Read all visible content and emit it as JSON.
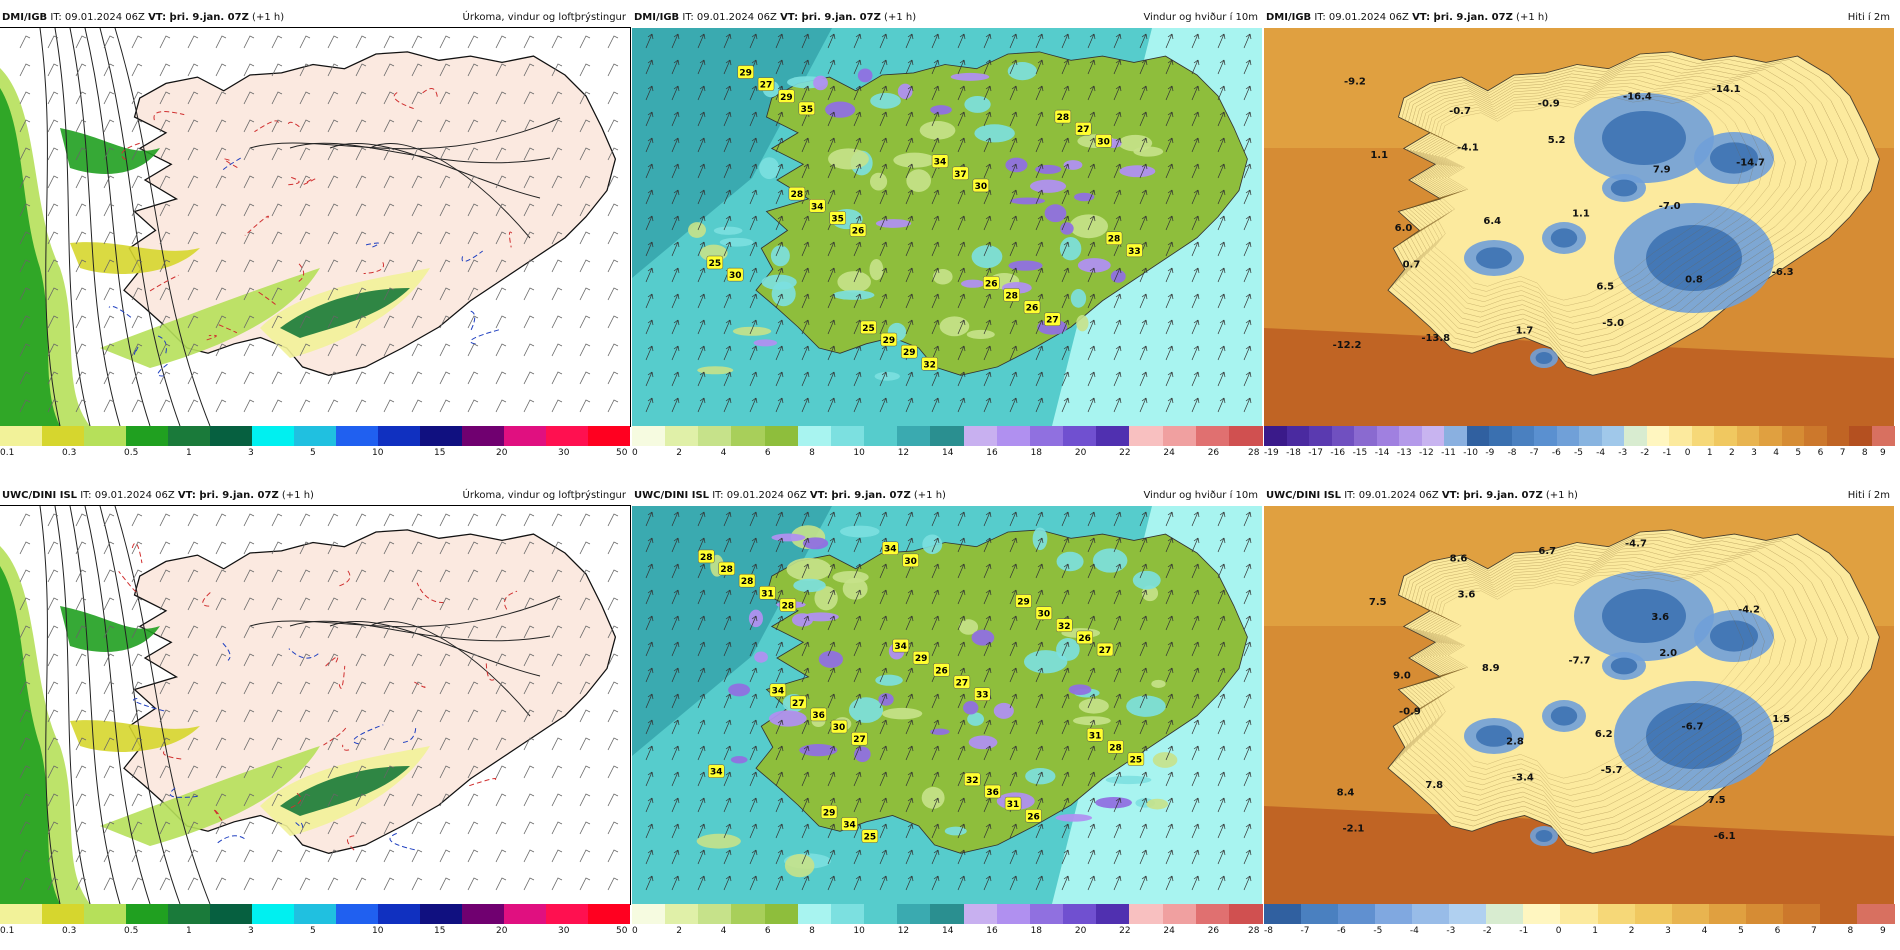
{
  "common": {
    "it_label": "IT:",
    "it_value": "09.01.2024 06Z",
    "vt_label": "VT: þri. 9.jan. 07Z",
    "lead": "(+1 h)"
  },
  "panels": [
    {
      "id": "dmi-precip",
      "source": "DMI/IGB",
      "title": "Úrkoma, vindur og loftþrýstingur",
      "type": "precip",
      "colorbar": {
        "colors": [
          "#f2f299",
          "#d6d62e",
          "#b6e05a",
          "#20a020",
          "#1a7a3a",
          "#066040",
          "#00f0f0",
          "#20c0e0",
          "#2060f0",
          "#1030c0",
          "#101080",
          "#700070",
          "#e01080",
          "#ff1050",
          "#ff0020"
        ],
        "ticks": [
          "0.1",
          "0.3",
          "0.5",
          "1",
          "3",
          "5",
          "10",
          "15",
          "20",
          "30",
          "50"
        ]
      },
      "labels": []
    },
    {
      "id": "dmi-wind",
      "source": "DMI/IGB",
      "title": "Vindur og hviður í 10m",
      "type": "wind",
      "colorbar": {
        "colors": [
          "#f6fbe0",
          "#e0f0a8",
          "#c6e28a",
          "#a8cf5a",
          "#8ebe3c",
          "#a8f4f0",
          "#7ce0e0",
          "#56cccc",
          "#3aaab0",
          "#2a8f90",
          "#c8b0f0",
          "#b090f0",
          "#9070e0",
          "#7050d0",
          "#5030b0",
          "#f8c0c0",
          "#f0a0a0",
          "#e07070",
          "#d05050"
        ],
        "ticks": [
          "0",
          "2",
          "4",
          "6",
          "8",
          "10",
          "12",
          "14",
          "16",
          "18",
          "20",
          "22",
          "24",
          "26",
          "28"
        ]
      },
      "labels": [
        "35",
        "32",
        "27",
        "30",
        "26",
        "30",
        "30",
        "29",
        "29",
        "26",
        "25",
        "35",
        "37",
        "27",
        "27",
        "29",
        "28",
        "33",
        "34",
        "34",
        "28",
        "29",
        "25",
        "26",
        "28",
        "28"
      ]
    },
    {
      "id": "dmi-temp",
      "source": "DMI/IGB",
      "title": "Hiti í 2m",
      "type": "temp",
      "colorbar": {
        "colors": [
          "#3a1a8a",
          "#4a2aa0",
          "#5a3ab0",
          "#7050c0",
          "#8a6ad0",
          "#a080e0",
          "#b49aea",
          "#c8b4f0",
          "#8ab0e0",
          "#3060a0",
          "#3a70b0",
          "#4a80c0",
          "#5a90d0",
          "#70a0d8",
          "#88b4e0",
          "#a0c8ea",
          "#d8ecd0",
          "#fff6c0",
          "#fcea9e",
          "#f6d878",
          "#f0c860",
          "#e8b450",
          "#e0a040",
          "#d68c34",
          "#cc782c",
          "#c06424",
          "#b45020",
          "#d87060"
        ],
        "ticks": [
          "-19",
          "-18",
          "-17",
          "-16",
          "-15",
          "-14",
          "-13",
          "-12",
          "-11",
          "-10",
          "-9",
          "-8",
          "-7",
          "-6",
          "-5",
          "-4",
          "-3",
          "-2",
          "-1",
          "0",
          "1",
          "2",
          "3",
          "4",
          "5",
          "6",
          "7",
          "8",
          "9"
        ]
      },
      "labels": [
        "-0.7",
        "7.9",
        "6.0",
        "6.5",
        "-12.2",
        "-0.9",
        "-14.7",
        "6.4",
        "0.8",
        "-13.8",
        "-16.4",
        "1.1",
        "1.1",
        "-6.3",
        "1.7",
        "-14.1",
        "-4.1",
        "-7.0",
        "0.7",
        "-5.0",
        "-9.2",
        "5.2"
      ]
    },
    {
      "id": "uwc-precip",
      "source": "UWC/DINI ISL",
      "title": "Úrkoma, vindur og loftþrýstingur",
      "type": "precip",
      "colorbar": {
        "colors": [
          "#f2f299",
          "#d6d62e",
          "#b6e05a",
          "#20a020",
          "#1a7a3a",
          "#066040",
          "#00f0f0",
          "#20c0e0",
          "#2060f0",
          "#1030c0",
          "#101080",
          "#700070",
          "#e01080",
          "#ff1050",
          "#ff0020"
        ],
        "ticks": [
          "0.1",
          "0.3",
          "0.5",
          "1",
          "3",
          "5",
          "10",
          "15",
          "20",
          "30",
          "50"
        ]
      },
      "labels": []
    },
    {
      "id": "uwc-wind",
      "source": "UWC/DINI ISL",
      "title": "Vindur og hviður í 10m",
      "type": "wind",
      "colorbar": {
        "colors": [
          "#f6fbe0",
          "#e0f0a8",
          "#c6e28a",
          "#a8cf5a",
          "#8ebe3c",
          "#a8f4f0",
          "#7ce0e0",
          "#56cccc",
          "#3aaab0",
          "#2a8f90",
          "#c8b0f0",
          "#b090f0",
          "#9070e0",
          "#7050d0",
          "#5030b0",
          "#f8c0c0",
          "#f0a0a0",
          "#e07070",
          "#d05050"
        ],
        "ticks": [
          "0",
          "2",
          "4",
          "6",
          "8",
          "10",
          "12",
          "14",
          "16",
          "18",
          "20",
          "22",
          "24",
          "26",
          "28"
        ]
      },
      "labels": [
        "27",
        "33",
        "27",
        "28",
        "30",
        "26",
        "34",
        "30",
        "27",
        "26",
        "31",
        "34",
        "31",
        "25",
        "36",
        "26",
        "32",
        "28",
        "25",
        "36",
        "28",
        "27",
        "29",
        "30",
        "28",
        "34",
        "32",
        "31",
        "34",
        "34",
        "29",
        "28",
        "29"
      ]
    },
    {
      "id": "uwc-temp",
      "source": "UWC/DINI ISL",
      "title": "Hiti í 2m",
      "type": "temp",
      "colorbar": {
        "colors": [
          "#3060a0",
          "#4a80c0",
          "#6090d0",
          "#80a8e0",
          "#98bce8",
          "#b0d0f0",
          "#d8ecd0",
          "#fff6c0",
          "#fcea9e",
          "#f6d878",
          "#f0c860",
          "#e8b450",
          "#e0a040",
          "#d68c34",
          "#cc782c",
          "#c06424",
          "#d87060"
        ],
        "ticks": [
          "-8",
          "-7",
          "-6",
          "-5",
          "-4",
          "-3",
          "-2",
          "-1",
          "0",
          "1",
          "2",
          "3",
          "4",
          "5",
          "6",
          "7",
          "8",
          "9"
        ]
      },
      "labels": [
        "2.8",
        "7.5",
        "8.6",
        "3.6",
        "9.0",
        "6.2",
        "8.4",
        "6.7",
        "-4.2",
        "8.9",
        "-6.7",
        "7.8",
        "-4.7",
        "7.5",
        "-7.7",
        "1.5",
        "-3.4",
        "-6.1",
        "3.6",
        "2.0",
        "-0.9",
        "-5.7",
        "-2.1"
      ]
    }
  ]
}
